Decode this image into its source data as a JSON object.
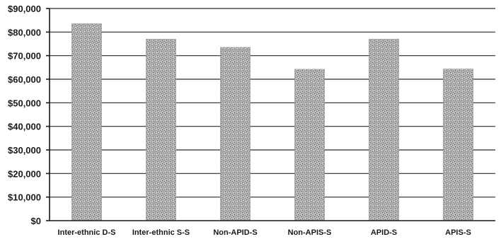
{
  "chart_data": {
    "type": "bar",
    "categories": [
      "Inter-ethnic D-S",
      "Inter-ethnic S-S",
      "Non-APID-S",
      "Non-APIS-S",
      "APID-S",
      "APIS-S"
    ],
    "values": [
      83500,
      77000,
      73500,
      64200,
      77000,
      64300
    ],
    "title": "",
    "xlabel": "",
    "ylabel": "",
    "ylim": [
      0,
      90000
    ],
    "yticks": [
      "$0",
      "$10,000",
      "$20,000",
      "$30,000",
      "$40,000",
      "$50,000",
      "$60,000",
      "$70,000",
      "$80,000",
      "$90,000"
    ],
    "grid": true,
    "legend": "none",
    "bar_color": "#a8a8a8"
  }
}
